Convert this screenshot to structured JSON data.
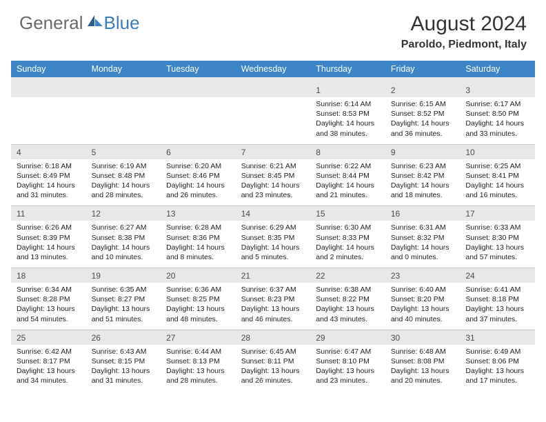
{
  "brand": {
    "general": "General",
    "blue": "Blue"
  },
  "title": "August 2024",
  "location": "Paroldo, Piedmont, Italy",
  "colors": {
    "header_bg": "#3d85c6",
    "header_text": "#ffffff",
    "daynum_bg": "#e8e8e8",
    "body_text": "#222222",
    "logo_gray": "#6a6a6a",
    "logo_blue": "#3d7db8"
  },
  "day_headers": [
    "Sunday",
    "Monday",
    "Tuesday",
    "Wednesday",
    "Thursday",
    "Friday",
    "Saturday"
  ],
  "weeks": [
    [
      null,
      null,
      null,
      null,
      {
        "n": "1",
        "sr": "6:14 AM",
        "ss": "8:53 PM",
        "dl": "14 hours and 38 minutes."
      },
      {
        "n": "2",
        "sr": "6:15 AM",
        "ss": "8:52 PM",
        "dl": "14 hours and 36 minutes."
      },
      {
        "n": "3",
        "sr": "6:17 AM",
        "ss": "8:50 PM",
        "dl": "14 hours and 33 minutes."
      }
    ],
    [
      {
        "n": "4",
        "sr": "6:18 AM",
        "ss": "8:49 PM",
        "dl": "14 hours and 31 minutes."
      },
      {
        "n": "5",
        "sr": "6:19 AM",
        "ss": "8:48 PM",
        "dl": "14 hours and 28 minutes."
      },
      {
        "n": "6",
        "sr": "6:20 AM",
        "ss": "8:46 PM",
        "dl": "14 hours and 26 minutes."
      },
      {
        "n": "7",
        "sr": "6:21 AM",
        "ss": "8:45 PM",
        "dl": "14 hours and 23 minutes."
      },
      {
        "n": "8",
        "sr": "6:22 AM",
        "ss": "8:44 PM",
        "dl": "14 hours and 21 minutes."
      },
      {
        "n": "9",
        "sr": "6:23 AM",
        "ss": "8:42 PM",
        "dl": "14 hours and 18 minutes."
      },
      {
        "n": "10",
        "sr": "6:25 AM",
        "ss": "8:41 PM",
        "dl": "14 hours and 16 minutes."
      }
    ],
    [
      {
        "n": "11",
        "sr": "6:26 AM",
        "ss": "8:39 PM",
        "dl": "14 hours and 13 minutes."
      },
      {
        "n": "12",
        "sr": "6:27 AM",
        "ss": "8:38 PM",
        "dl": "14 hours and 10 minutes."
      },
      {
        "n": "13",
        "sr": "6:28 AM",
        "ss": "8:36 PM",
        "dl": "14 hours and 8 minutes."
      },
      {
        "n": "14",
        "sr": "6:29 AM",
        "ss": "8:35 PM",
        "dl": "14 hours and 5 minutes."
      },
      {
        "n": "15",
        "sr": "6:30 AM",
        "ss": "8:33 PM",
        "dl": "14 hours and 2 minutes."
      },
      {
        "n": "16",
        "sr": "6:31 AM",
        "ss": "8:32 PM",
        "dl": "14 hours and 0 minutes."
      },
      {
        "n": "17",
        "sr": "6:33 AM",
        "ss": "8:30 PM",
        "dl": "13 hours and 57 minutes."
      }
    ],
    [
      {
        "n": "18",
        "sr": "6:34 AM",
        "ss": "8:28 PM",
        "dl": "13 hours and 54 minutes."
      },
      {
        "n": "19",
        "sr": "6:35 AM",
        "ss": "8:27 PM",
        "dl": "13 hours and 51 minutes."
      },
      {
        "n": "20",
        "sr": "6:36 AM",
        "ss": "8:25 PM",
        "dl": "13 hours and 48 minutes."
      },
      {
        "n": "21",
        "sr": "6:37 AM",
        "ss": "8:23 PM",
        "dl": "13 hours and 46 minutes."
      },
      {
        "n": "22",
        "sr": "6:38 AM",
        "ss": "8:22 PM",
        "dl": "13 hours and 43 minutes."
      },
      {
        "n": "23",
        "sr": "6:40 AM",
        "ss": "8:20 PM",
        "dl": "13 hours and 40 minutes."
      },
      {
        "n": "24",
        "sr": "6:41 AM",
        "ss": "8:18 PM",
        "dl": "13 hours and 37 minutes."
      }
    ],
    [
      {
        "n": "25",
        "sr": "6:42 AM",
        "ss": "8:17 PM",
        "dl": "13 hours and 34 minutes."
      },
      {
        "n": "26",
        "sr": "6:43 AM",
        "ss": "8:15 PM",
        "dl": "13 hours and 31 minutes."
      },
      {
        "n": "27",
        "sr": "6:44 AM",
        "ss": "8:13 PM",
        "dl": "13 hours and 28 minutes."
      },
      {
        "n": "28",
        "sr": "6:45 AM",
        "ss": "8:11 PM",
        "dl": "13 hours and 26 minutes."
      },
      {
        "n": "29",
        "sr": "6:47 AM",
        "ss": "8:10 PM",
        "dl": "13 hours and 23 minutes."
      },
      {
        "n": "30",
        "sr": "6:48 AM",
        "ss": "8:08 PM",
        "dl": "13 hours and 20 minutes."
      },
      {
        "n": "31",
        "sr": "6:49 AM",
        "ss": "8:06 PM",
        "dl": "13 hours and 17 minutes."
      }
    ]
  ],
  "labels": {
    "sunrise": "Sunrise:",
    "sunset": "Sunset:",
    "daylight": "Daylight:"
  }
}
